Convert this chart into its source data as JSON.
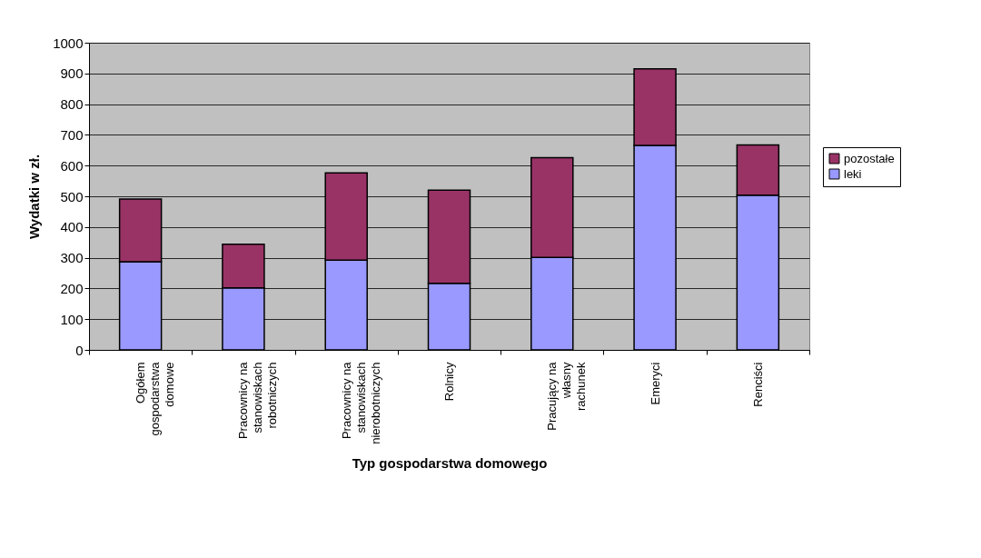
{
  "chart_data": {
    "type": "bar",
    "stacked": true,
    "xlabel": "Typ gospodarstwa domowego",
    "ylabel": "Wydatki w zł.",
    "categories": [
      "Ogółem\ngospodarstwa\ndomowe",
      "Pracownicy na\nstanowiskach\nrobotniczych",
      "Pracownicy na\nstanowiskach\nnierobotniczych",
      "Rolnicy",
      "Pracujący na\nwłasny\nrachunek",
      "Emeryci",
      "Renciści"
    ],
    "series": [
      {
        "name": "leki",
        "color": "#9999ff",
        "values": [
          287,
          202,
          292,
          217,
          301,
          666,
          504
        ]
      },
      {
        "name": "pozostałe",
        "color": "#993366",
        "values": [
          204,
          142,
          284,
          303,
          325,
          249,
          163
        ]
      }
    ],
    "ylim": [
      0,
      1000
    ],
    "yticks": [
      0,
      100,
      200,
      300,
      400,
      500,
      600,
      700,
      800,
      900,
      1000
    ],
    "grid": "y",
    "legend": "right"
  }
}
